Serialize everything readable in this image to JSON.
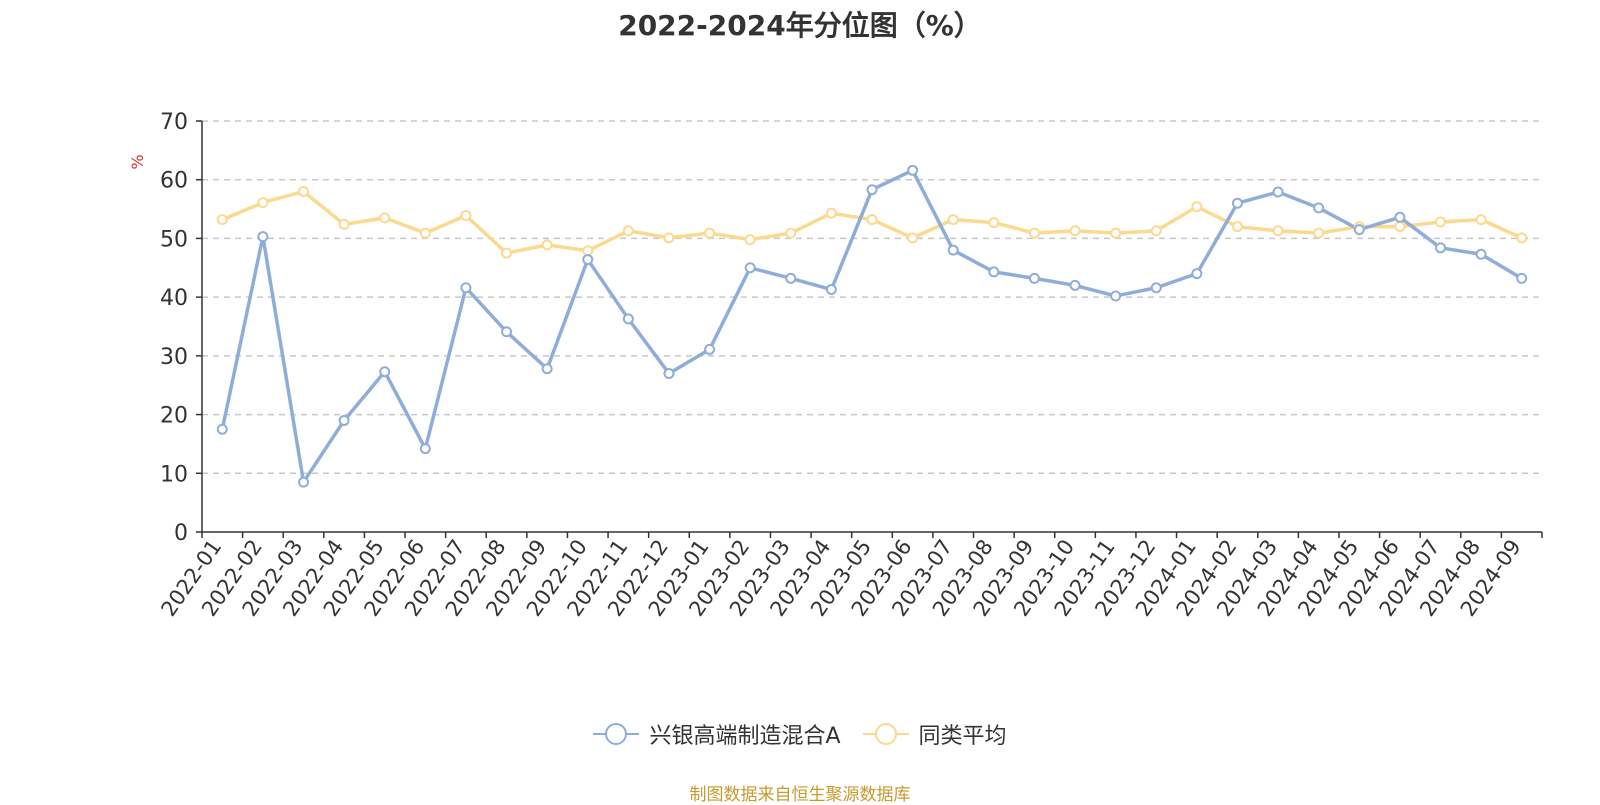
{
  "title": "2022-2024年分位图（%）",
  "source_note": "制图数据来自恒生聚源数据库",
  "colors": {
    "series_a": "#8fadd9",
    "series_b": "#fcd98e",
    "unit_label": "#e0302a",
    "axis": "#333333",
    "grid": "#c8c8c8"
  },
  "chart_data": {
    "type": "line",
    "title": "2022-2024年分位图（%）",
    "ylabel": "%",
    "xlabel": "",
    "ylim": [
      0,
      70
    ],
    "yticks": [
      0,
      10,
      20,
      30,
      40,
      50,
      60,
      70
    ],
    "grid": true,
    "legend_position": "bottom",
    "categories": [
      "2022-01",
      "2022-02",
      "2022-03",
      "2022-04",
      "2022-05",
      "2022-06",
      "2022-07",
      "2022-08",
      "2022-09",
      "2022-10",
      "2022-11",
      "2022-12",
      "2023-01",
      "2023-02",
      "2023-03",
      "2023-04",
      "2023-05",
      "2023-06",
      "2023-07",
      "2023-08",
      "2023-09",
      "2023-10",
      "2023-11",
      "2023-12",
      "2024-01",
      "2024-02",
      "2024-03",
      "2024-04",
      "2024-05",
      "2024-06",
      "2024-07",
      "2024-08",
      "2024-09"
    ],
    "series": [
      {
        "name": "兴银高端制造混合A",
        "values": [
          17.5,
          50.3,
          8.5,
          19,
          27.3,
          14.2,
          41.6,
          34.1,
          27.8,
          46.4,
          36.3,
          27,
          31.1,
          45,
          43.2,
          41.3,
          58.3,
          61.6,
          48,
          44.3,
          43.2,
          42,
          40.2,
          41.6,
          44,
          56,
          57.9,
          55.2,
          51.5,
          53.6,
          48.4,
          47.3,
          43.2
        ]
      },
      {
        "name": "同类平均",
        "values": [
          53.2,
          56.1,
          58,
          52.4,
          53.5,
          50.9,
          53.9,
          47.5,
          48.9,
          47.9,
          51.3,
          50.1,
          50.9,
          49.8,
          50.9,
          54.3,
          53.2,
          50.1,
          53.2,
          52.7,
          50.9,
          51.3,
          50.9,
          51.3,
          55.4,
          52,
          51.3,
          50.9,
          52,
          52,
          52.8,
          53.2,
          50.1
        ]
      }
    ]
  }
}
